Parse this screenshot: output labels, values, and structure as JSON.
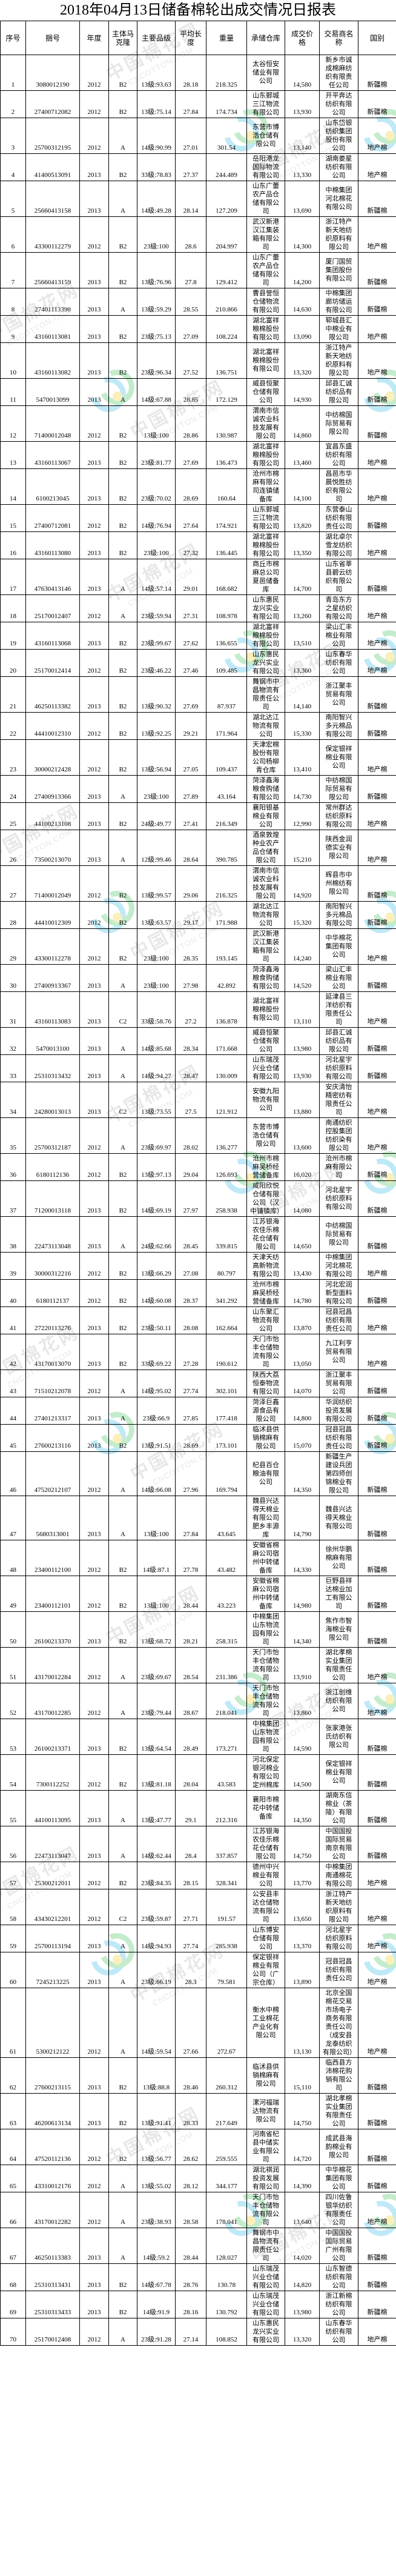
{
  "page": {
    "title": "2018年04月13日储备棉轮出成交情况日报表"
  },
  "watermark": {
    "cn_text": "中国棉花网",
    "en_text": "CNCOTTON.COM",
    "logo_colors": {
      "blue": "#49c3e8",
      "green": "#59c96e",
      "yellow": "#f4d23c"
    }
  },
  "table": {
    "columns": [
      "序号",
      "捆号",
      "年度",
      "主体马克隆",
      "主要品级",
      "平均长度",
      "重量",
      "承储仓库",
      "成交价格",
      "交易商名称",
      "国别"
    ],
    "column_keys": [
      "index",
      "bale-no",
      "year",
      "micronaire",
      "grade",
      "avg-length",
      "weight",
      "warehouse",
      "deal-price",
      "trader-name",
      "origin"
    ],
    "rows": [
      [
        "1",
        "3080012190",
        "2012",
        "B2",
        "13级:93.63",
        "28.18",
        "218.325",
        "太谷恒安储业有限公司",
        "14,580",
        "新乡市诚成棉麻纺织有限责任公司",
        "新疆棉"
      ],
      [
        "2",
        "27400712082",
        "2012",
        "B2",
        "13级:75.14",
        "27.84",
        "174.734",
        "山东鄄城三江物流有限公司",
        "13,930",
        "开平奔达纺织有限公司",
        "新疆棉"
      ],
      [
        "3",
        "25700312195",
        "2012",
        "A",
        "14级:90.99",
        "27.01",
        "301.54",
        "东营市博浩仓储有限公司",
        "13,140",
        "山东岱银纺织集团股份有限公司",
        "地产棉"
      ],
      [
        "4",
        "41400513091",
        "2013",
        "B2",
        "33级:78.83",
        "27.37",
        "244.489",
        "岳阳港龙国际物流有限公司",
        "13,330",
        "湖南娄星纺织有限公司",
        "地产棉"
      ],
      [
        "5",
        "25660413158",
        "2013",
        "A",
        "14级:49.28",
        "28.14",
        "127.209",
        "山东广蕾农产品仓储有限公司",
        "13,690",
        "中棉集团河北棉花有限公司",
        "新疆棉"
      ],
      [
        "6",
        "43300112279",
        "2012",
        "B2",
        "23级:100",
        "28.6",
        "204.997",
        "武汉新港汉江集装箱有限公司",
        "14,300",
        "浙江特产新天地纺织原料有限公司",
        "地产棉"
      ],
      [
        "7",
        "25660413159",
        "2013",
        "B2",
        "13级:76.96",
        "27.8",
        "129.412",
        "山东广蕾农产品仓储有限公司",
        "14,200",
        "厦门国贸集团股份有限公司",
        "新疆棉"
      ],
      [
        "8",
        "27401113390",
        "2013",
        "A",
        "13级:59.29",
        "28.55",
        "210.866",
        "曹县誉恒仓储物流有限公司",
        "14,630",
        "中棉集团廊坊储运有限公司",
        "新疆棉"
      ],
      [
        "9",
        "43160113081",
        "2013",
        "B2",
        "23级:75.13",
        "27.09",
        "108.224",
        "湖北富祥粮棉股份有限公司",
        "13,090",
        "郓城县汇中棉业有限公司",
        "地产棉"
      ],
      [
        "10",
        "43160113082",
        "2013",
        "B2",
        "23级:96.34",
        "27.52",
        "136.751",
        "湖北富祥粮棉股份有限公司",
        "13,320",
        "浙江特产新天地纺织原料有限公司",
        "地产棉"
      ],
      [
        "11",
        "5470013099",
        "2013",
        "A",
        "14级:67.88",
        "28.85",
        "172.129",
        "威县恒聚仓储有限公司",
        "14,930",
        "邱县汇诚纺织品有限公司",
        "新疆棉"
      ],
      [
        "12",
        "71400012048",
        "2012",
        "B2",
        "13级:100",
        "28.86",
        "130.987",
        "渭南市信诚农业科技发展有限公司",
        "14,860",
        "中纺棉国际贸易有限公司",
        "新疆棉"
      ],
      [
        "13",
        "43160113067",
        "2013",
        "B2",
        "23级:81.77",
        "27.69",
        "136.473",
        "湖北富祥粮棉股份有限公司",
        "13,460",
        "宜昌东盛纺织有限公司",
        "地产棉"
      ],
      [
        "14",
        "6100213045",
        "2013",
        "B2",
        "23级:70.02",
        "28.69",
        "160.64",
        "沧州市棉麻有限公司连镇储备库",
        "14,100",
        "昌邑市华晨悦胜纺织有限公司",
        "地产棉"
      ],
      [
        "15",
        "27400712081",
        "2012",
        "B2",
        "14级:76.94",
        "27.64",
        "174.921",
        "山东鄄城三江物流有限公司",
        "13,820",
        "东营泰山纺织有限责任公司",
        "新疆棉"
      ],
      [
        "16",
        "43160113080",
        "2013",
        "B2",
        "23级:100",
        "27.32",
        "136.445",
        "湖北富祥粮棉股份有限公司",
        "13,350",
        "湖北卓尔雪龙纺织有限公司",
        "地产棉"
      ],
      [
        "17",
        "47630413146",
        "2013",
        "A",
        "14级:57.14",
        "29.01",
        "168.682",
        "商丘市棉麻总公司夏邑储备库",
        "14,700",
        "山东省莘县碧云纺织有限公司",
        "新疆棉"
      ],
      [
        "18",
        "25170012407",
        "2012",
        "A",
        "23级:59.94",
        "27.31",
        "108.978",
        "山东惠民龙兴实业有限公司",
        "13,260",
        "青岛东方之星纺织有限公司",
        "地产棉"
      ],
      [
        "19",
        "43160113068",
        "2013",
        "B2",
        "23级:99.67",
        "27.62",
        "136.655",
        "湖北富祥粮棉股份有限公司",
        "13,510",
        "梁山汇丰棉业有限公司",
        "地产棉"
      ],
      [
        "20",
        "25170012414",
        "2012",
        "B2",
        "23级:46.22",
        "27.46",
        "109.485",
        "山东惠民龙兴实业有限公司",
        "13,360",
        "山东春华纺织有限公司",
        "地产棉"
      ],
      [
        "21",
        "46250113382",
        "2013",
        "B2",
        "13级:90.32",
        "27.69",
        "87.937",
        "舞钢市中昌物流有限责任公司",
        "14,140",
        "浙江聚丰贸易有限公司",
        "新疆棉"
      ],
      [
        "22",
        "44410012310",
        "2012",
        "B2",
        "13级:92.25",
        "29.21",
        "171.964",
        "湖北达江物流有限公司",
        "15,330",
        "南阳智兴多元棉品有限公司",
        "新疆棉"
      ],
      [
        "23",
        "30000212428",
        "2012",
        "B2",
        "13级:56.94",
        "27.05",
        "109.437",
        "天津宏棉股份有限公司杨柳青仓库",
        "13,410",
        "保定银祥棉业有限公司",
        "地产棉"
      ],
      [
        "24",
        "27400913366",
        "2013",
        "A",
        "23级:100",
        "27.89",
        "43.164",
        "菏泽鑫海粮食购储有限公司",
        "14,730",
        "中纺棉国际贸易有限公司",
        "新疆棉"
      ],
      [
        "25",
        "44100213108",
        "2013",
        "B2",
        "24级:49.77",
        "27.41",
        "216.349",
        "襄阳银基棉业有限公司",
        "12,990",
        "常州群达纺织原料有限公司",
        "地产棉"
      ],
      [
        "26",
        "73500213070",
        "2013",
        "A",
        "12级:99.46",
        "28.64",
        "390.785",
        "酒泉敦煌种业农产品仓储有限公司",
        "15,210",
        "陕西金润德实业有限公司",
        "地产棉"
      ],
      [
        "27",
        "71400012049",
        "2012",
        "B2",
        "13级:99.57",
        "29.06",
        "216.325",
        "渭南市信诚农业科技发展有限公司",
        "14,920",
        "辉县市中州棉纺有限公司",
        "新疆棉"
      ],
      [
        "28",
        "44410012309",
        "2012",
        "B2",
        "13级:63.57",
        "29.17",
        "171.988",
        "湖北达江物流有限公司",
        "15,320",
        "南阳智兴多元棉品有限公司",
        "新疆棉"
      ],
      [
        "29",
        "43300112278",
        "2012",
        "B2",
        "23级:100",
        "28.35",
        "193.145",
        "武汉新港汉江集装箱有限公司",
        "14,240",
        "中华棉花集团有限公司",
        "地产棉"
      ],
      [
        "30",
        "27400913367",
        "2013",
        "A",
        "23级:100",
        "27.98",
        "42.892",
        "菏泽鑫海粮食购储有限公司",
        "14,520",
        "梁山汇丰棉业有限公司",
        "新疆棉"
      ],
      [
        "31",
        "43160113083",
        "2013",
        "C2",
        "33级:58.76",
        "27.2",
        "136.878",
        "湖北富祥粮棉股份有限公司",
        "13,110",
        "延津县三洋纺织有限责任公司",
        "地产棉"
      ],
      [
        "32",
        "5470013100",
        "2013",
        "A",
        "14级:85.68",
        "28.34",
        "171.668",
        "威县恒聚仓储有限公司",
        "13,980",
        "邱县汇诚纺织品有限公司",
        "新疆棉"
      ],
      [
        "33",
        "25310313432",
        "2013",
        "A",
        "14级:94.27",
        "28.47",
        "130.009",
        "山东瑞茂兴业仓储有限公司",
        "13,930",
        "河北星宇纺织原料有限公司",
        "新疆棉"
      ],
      [
        "34",
        "24280013013",
        "2013",
        "C2",
        "13级:73.55",
        "27.5",
        "121.912",
        "安徽九阳物流有限公司",
        "13,880",
        "安庆清怡精密纺有限责任公司",
        "地产棉"
      ],
      [
        "35",
        "25700312187",
        "2012",
        "A",
        "23级:69.97",
        "28.02",
        "136.277",
        "东营市博浩仓储有限公司",
        "13,600",
        "南通纺织控股集团纺织染有限公司",
        "地产棉"
      ],
      [
        "36",
        "6180112136",
        "2012",
        "B2",
        "13级:97.13",
        "29.04",
        "126.693",
        "沧州市棉麻吴桥经营储备库",
        "16,020",
        "沧州市棉麻有限公司",
        "新疆棉"
      ],
      [
        "37",
        "71200013118",
        "2013",
        "B2",
        "14级:69.19",
        "27.97",
        "258.938",
        "咸阳欣悦仓储有限公司（汉中铺镇库）",
        "14,080",
        "河北星宇纺织原料有限公司",
        "新疆棉"
      ],
      [
        "38",
        "22473113048",
        "2013",
        "A",
        "24级:62.66",
        "28.45",
        "339.815",
        "江苏银海农佳乐棉花仓储有限公司",
        "14,650",
        "中纺棉国际贸易有限公司",
        "新疆棉"
      ],
      [
        "39",
        "30000312216",
        "2012",
        "B2",
        "13级:66.29",
        "27.08",
        "80.797",
        "天津天纺高新物流有限公司",
        "13,430",
        "中棉集团河北棉花有限公司",
        "地产棉"
      ],
      [
        "40",
        "6180112137",
        "2012",
        "B2",
        "14级:60.08",
        "28.37",
        "341.292",
        "沧州市棉麻吴桥经营储备库",
        "14,780",
        "河北宏润新型面料有限公司",
        "新疆棉"
      ],
      [
        "41",
        "27220113276",
        "2013",
        "B2",
        "23级:50.11",
        "28.08",
        "162.664",
        "山东聚汇物流有限公司",
        "13,870",
        "冠县冠昌纺织有限责任公司",
        "地产棉"
      ],
      [
        "42",
        "43170013070",
        "2013",
        "B2",
        "33级:69.22",
        "27.28",
        "190.612",
        "天门市怡丰仓储物流有限公司",
        "13,050",
        "九江利亨贸易有限公司",
        "地产棉"
      ],
      [
        "43",
        "71510212078",
        "2012",
        "A",
        "14级:95.02",
        "27.74",
        "302.101",
        "陕西大荔恒泰物流有限公司",
        "14,070",
        "浙江聚丰贸易有限公司",
        "新疆棉"
      ],
      [
        "44",
        "27401213317",
        "2013",
        "A",
        "23级:66.9",
        "27.85",
        "177.418",
        "菏泽巨鑫源食品有限公司",
        "14,800",
        "华润纺织投资发展有限公司",
        "新疆棉"
      ],
      [
        "45",
        "27600213116",
        "2013",
        "B2",
        "13级:91.51",
        "28.69",
        "173.101",
        "临沭县供销棉麻有限公司",
        "15,070",
        "冠县冠昌纺织有限责任公司",
        "新疆棉"
      ],
      [
        "46",
        "47520212107",
        "2012",
        "A",
        "14级:66.08",
        "27.96",
        "169.794",
        "杞县百仓粮油有限公司",
        "14,350",
        "新疆生产建设兵团第四师创锦棉业有限公司",
        "新疆棉"
      ],
      [
        "47",
        "5680313001",
        "2013",
        "A",
        "13级:100",
        "27.84",
        "43.645",
        "魏县兴达得天棉业有限公司肥乡丰源库",
        "14,790",
        "魏县兴达得天棉业有限公司",
        "新疆棉"
      ],
      [
        "48",
        "23400112100",
        "2012",
        "B2",
        "14级:87.1",
        "27.78",
        "43.482",
        "安徽省棉麻公司宿州中转储备库",
        "14,330",
        "徐州华鹏棉麻有限公司",
        "新疆棉"
      ],
      [
        "49",
        "23400112101",
        "2012",
        "B2",
        "13级:100",
        "28.44",
        "43.223",
        "安徽省棉麻公司宿州中转储备库",
        "14,980",
        "巨野县祥达棉业加工有限公司",
        "新疆棉"
      ],
      [
        "50",
        "26100213370",
        "2013",
        "B2",
        "13级:68.72",
        "28.21",
        "258.315",
        "中棉集团山东物流园有限公司",
        "14,340",
        "焦作市智海棉业有限公司",
        "新疆棉"
      ],
      [
        "51",
        "43170012284",
        "2012",
        "A",
        "23级:69.67",
        "28.54",
        "231.386",
        "天门市怡丰仓储物流有限公司",
        "13,910",
        "湖北孝棉实业集团有限责任公司",
        "地产棉"
      ],
      [
        "52",
        "43170012285",
        "2012",
        "A",
        "23级:79.44",
        "28.67",
        "218.041",
        "天门市怡丰仓储物流有限公司",
        "13,860",
        "浙江创维纺织有限公司",
        "地产棉"
      ],
      [
        "53",
        "26100213371",
        "2013",
        "B2",
        "13级:64.54",
        "28.49",
        "173.271",
        "中棉集团山东物流园有限公司",
        "14,590",
        "张家港张氏纺织有限公司",
        "新疆棉"
      ],
      [
        "54",
        "7300112252",
        "2012",
        "B2",
        "13级:81.18",
        "28.04",
        "43.583",
        "河北保定银河棉业有限公司定州棉库",
        "14,500",
        "保定银祥棉业有限公司",
        "新疆棉"
      ],
      [
        "55",
        "44100113095",
        "2013",
        "A",
        "13级:47.77",
        "29.1",
        "212.316",
        "襄阳市棉花中转储备库",
        "14,350",
        "湖南东信棉业（茶陵）有限公司",
        "新疆棉"
      ],
      [
        "56",
        "22473113047",
        "2013",
        "A",
        "14级:62.44",
        "28.4",
        "337.857",
        "江苏银海农佳乐棉花仓储有限公司",
        "14,750",
        "中国国投国际贸易南京有限公司",
        "新疆棉"
      ],
      [
        "57",
        "25300212011",
        "2012",
        "B2",
        "23级:84.35",
        "28.15",
        "328.341",
        "德州中兴棉业有限公司",
        "13,770",
        "中棉集团南通棉花有限公司",
        "地产棉"
      ],
      [
        "58",
        "43430212201",
        "2012",
        "C2",
        "23级:59.87",
        "27.71",
        "191.57",
        "公安县丰达仓储物流有限公司",
        "13,650",
        "浙江特产新天地纺织原料有限公司",
        "地产棉"
      ],
      [
        "59",
        "25700113194",
        "2013",
        "A",
        "14级:94.93",
        "27.74",
        "285.938",
        "山东博安仓储有限公司",
        "13,370",
        "河北星宇纺织原料有限公司",
        "地产棉"
      ],
      [
        "60",
        "7245213225",
        "2013",
        "A",
        "23级:66.19",
        "28.3",
        "79.581",
        "保定银祥棉业有限公司（广宗仓库）",
        "13,890",
        "冠县冠昌纺织有限责任公司",
        "地产棉"
      ],
      [
        "61",
        "5300212122",
        "2012",
        "A",
        "14级:59.54",
        "27.66",
        "272.67",
        "衡水中棉工业棉花产业化有限公司",
        "13,130",
        "北京全国棉花交易市场电子商务有限责任公司（成安县龙泰纺织有限公司）",
        "地产棉"
      ],
      [
        "62",
        "27600213115",
        "2013",
        "B2",
        "13级:88.8",
        "28.46",
        "260.312",
        "临沭县供销棉麻有限公司",
        "15,110",
        "临西县方沛棉花购销有限公司",
        "新疆棉"
      ],
      [
        "63",
        "46200613134",
        "2013",
        "B2",
        "13级:91.41",
        "28.33",
        "217.649",
        "漯河福瑞达物流有限公司",
        "14,750",
        "湖北孝棉实业集团有限责任公司",
        "新疆棉"
      ],
      [
        "64",
        "47520112136",
        "2012",
        "B2",
        "13级:56.77",
        "28.62",
        "259.555",
        "河南省杞县中储实业有限公司",
        "14,720",
        "成武县海韵棉业有限公司",
        "新疆棉"
      ],
      [
        "65",
        "43310012176",
        "2012",
        "A",
        "13级:55.02",
        "28.12",
        "344.177",
        "湖北祺润投资发展有限公司",
        "14,390",
        "中华棉花集团有限公司",
        "新疆棉"
      ],
      [
        "66",
        "43170012282",
        "2012",
        "A",
        "23级:38.93",
        "28.58",
        "178.041",
        "天门市怡丰仓储物流有限公司",
        "13,640",
        "四川佐鲁银华纺织有限责任公司",
        "地产棉"
      ],
      [
        "67",
        "46250113383",
        "2013",
        "A",
        "14级:59.2",
        "28.44",
        "128.027",
        "舞钢市中昌物流有限责任公司",
        "14,020",
        "中国国投国际贸易广州有限公司",
        "新疆棉"
      ],
      [
        "68",
        "25310313431",
        "2013",
        "B2",
        "14级:67.78",
        "28.76",
        "130.78",
        "山东瑞茂兴业仓储有限公司",
        "14,820",
        "山东智德纺织有限公司",
        "新疆棉"
      ],
      [
        "69",
        "25310313433",
        "2013",
        "B2",
        "14级:91.9",
        "28.16",
        "130.792",
        "山东瑞茂兴业仓储有限公司",
        "13,980",
        "浙江新棉纺织有限公司",
        "新疆棉"
      ],
      [
        "70",
        "25170012408",
        "2012",
        "A",
        "23级:91.28",
        "27.14",
        "108.852",
        "山东惠民龙兴实业有限公司",
        "13,320",
        "山东春华纺织有限公司",
        "地产棉"
      ]
    ]
  }
}
